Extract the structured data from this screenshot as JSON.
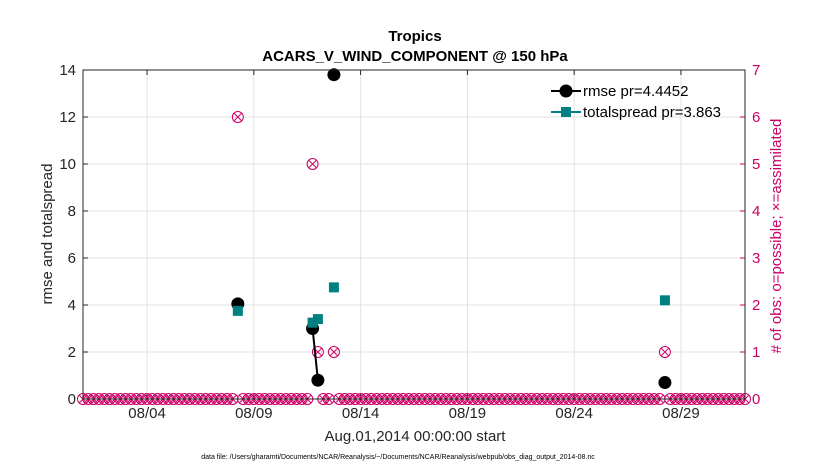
{
  "chart_data": {
    "type": "line",
    "title": "Tropics",
    "subtitle": "ACARS_V_WIND_COMPONENT @ 150 hPa",
    "xlabel": "Aug.01,2014 00:00:00 start",
    "ylabel": "rmse and totalspread",
    "y2label": "# of obs: o=possible; ×=assimilated",
    "footnote": "data file: /Users/gharamti/Documents/NCAR/Reanalysis/~/Documents/NCAR/Reanalysis/webpub/obs_diag_output_2014-08.nc",
    "xlim": [
      0,
      31
    ],
    "ylim": [
      0,
      14
    ],
    "y2lim": [
      0,
      7
    ],
    "x_ticks": [
      3,
      8,
      13,
      18,
      23,
      28
    ],
    "x_tick_labels": [
      "08/04",
      "08/09",
      "08/14",
      "08/19",
      "08/24",
      "08/29"
    ],
    "y_ticks": [
      0,
      2,
      4,
      6,
      8,
      10,
      12,
      14
    ],
    "y2_ticks": [
      0,
      1,
      2,
      3,
      4,
      5,
      6,
      7
    ],
    "grid": true,
    "legend_position": "top-right",
    "series": [
      {
        "name": "rmse pr=4.4452",
        "color": "#000000",
        "marker": "circle",
        "axis": "left",
        "points": [
          [
            7.25,
            4.05
          ],
          [
            10.75,
            3.0
          ],
          [
            11.0,
            0.8
          ],
          [
            11.75,
            13.8
          ],
          [
            27.25,
            0.7
          ]
        ],
        "segments": [
          [
            [
              10.75,
              3.0
            ],
            [
              11.0,
              0.8
            ]
          ]
        ]
      },
      {
        "name": "totalspread pr=3.863",
        "color": "#008080",
        "marker": "square",
        "axis": "left",
        "points": [
          [
            7.25,
            3.75
          ],
          [
            10.75,
            3.25
          ],
          [
            11.0,
            3.4
          ],
          [
            11.75,
            4.75
          ],
          [
            27.25,
            4.2
          ]
        ],
        "segments": [
          [
            [
              10.75,
              3.25
            ],
            [
              11.0,
              3.4
            ]
          ]
        ]
      }
    ],
    "obs_counts": {
      "color": "#cc0066",
      "axis": "right",
      "x_start": 0.0,
      "x_step": 0.25,
      "n": 125,
      "nonzero": [
        {
          "x": 7.25,
          "possible": 6,
          "assimilated": 6
        },
        {
          "x": 10.75,
          "possible": 5,
          "assimilated": 5
        },
        {
          "x": 11.0,
          "possible": 1,
          "assimilated": 1
        },
        {
          "x": 11.75,
          "possible": 1,
          "assimilated": 1
        },
        {
          "x": 27.25,
          "possible": 1,
          "assimilated": 1
        }
      ]
    }
  }
}
